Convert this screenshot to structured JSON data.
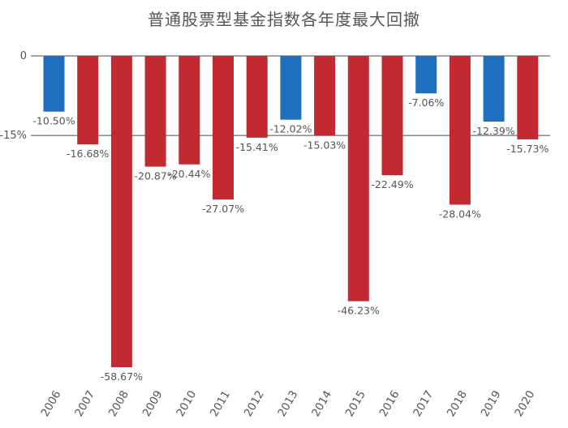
{
  "chart_data": {
    "type": "bar",
    "title": "普通股票型基金指数各年度最大回撤",
    "categories": [
      "2006",
      "2007",
      "2008",
      "2009",
      "2010",
      "2011",
      "2012",
      "2013",
      "2014",
      "2015",
      "2016",
      "2017",
      "2018",
      "2019",
      "2020"
    ],
    "values": [
      -10.5,
      -16.68,
      -58.67,
      -20.87,
      -20.44,
      -27.07,
      -15.41,
      -12.02,
      -15.03,
      -46.23,
      -22.49,
      -7.06,
      -28.04,
      -12.39,
      -15.73
    ],
    "data_labels": [
      "-10.50%",
      "-16.68%",
      "-58.67%",
      "-20.87%",
      "-20.44%",
      "-27.07%",
      "-15.41%",
      "-12.02%",
      "-15.03%",
      "-46.23%",
      "-22.49%",
      "-7.06%",
      "-28.04%",
      "-12.39%",
      "-15.73%"
    ],
    "bar_colors": [
      "#1f6fbf",
      "#c22a32",
      "#c22a32",
      "#c22a32",
      "#c22a32",
      "#c22a32",
      "#c22a32",
      "#1f6fbf",
      "#c22a32",
      "#c22a32",
      "#c22a32",
      "#1f6fbf",
      "#c22a32",
      "#1f6fbf",
      "#c22a32"
    ],
    "y_ticks": [
      0,
      -15
    ],
    "y_tick_labels": [
      "0",
      "-15%"
    ],
    "reference_lines": [
      0,
      -15
    ],
    "ylim": [
      -60,
      0
    ],
    "xlabel": "",
    "ylabel": "",
    "legend": "none",
    "grid": false
  }
}
